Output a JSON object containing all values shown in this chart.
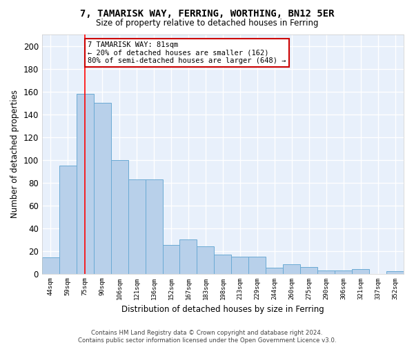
{
  "title": "7, TAMARISK WAY, FERRING, WORTHING, BN12 5ER",
  "subtitle": "Size of property relative to detached houses in Ferring",
  "xlabel": "Distribution of detached houses by size in Ferring",
  "ylabel": "Number of detached properties",
  "categories": [
    "44sqm",
    "59sqm",
    "75sqm",
    "90sqm",
    "106sqm",
    "121sqm",
    "136sqm",
    "152sqm",
    "167sqm",
    "183sqm",
    "198sqm",
    "213sqm",
    "229sqm",
    "244sqm",
    "260sqm",
    "275sqm",
    "290sqm",
    "306sqm",
    "321sqm",
    "337sqm",
    "352sqm"
  ],
  "values": [
    14,
    95,
    158,
    150,
    100,
    83,
    83,
    25,
    30,
    24,
    17,
    15,
    15,
    5,
    8,
    6,
    3,
    3,
    4,
    0,
    2
  ],
  "bar_color": "#b8d0ea",
  "bar_edge_color": "#6aaad4",
  "background_color": "#e8f0fb",
  "grid_color": "#ffffff",
  "red_line_x": 2,
  "annotation_text": "7 TAMARISK WAY: 81sqm\n← 20% of detached houses are smaller (162)\n80% of semi-detached houses are larger (648) →",
  "annotation_box_color": "#ffffff",
  "annotation_box_edge_color": "#cc0000",
  "footer": "Contains HM Land Registry data © Crown copyright and database right 2024.\nContains public sector information licensed under the Open Government Licence v3.0.",
  "ylim": [
    0,
    210
  ],
  "yticks": [
    0,
    20,
    40,
    60,
    80,
    100,
    120,
    140,
    160,
    180,
    200
  ]
}
